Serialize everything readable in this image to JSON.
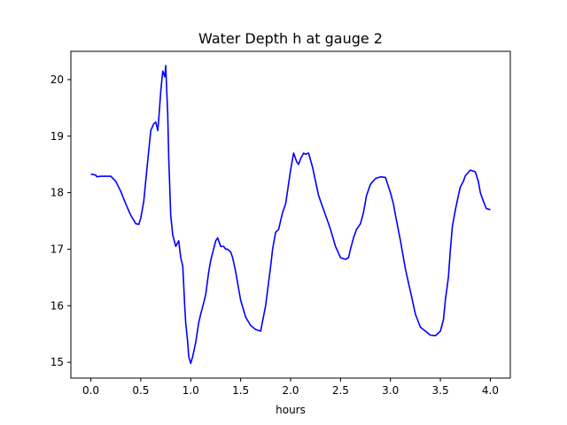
{
  "chart_data": {
    "type": "line",
    "title": "Water Depth h at gauge 2",
    "xlabel": "hours",
    "ylabel": "",
    "xlim": [
      -0.2,
      4.2
    ],
    "ylim": [
      14.72,
      20.5
    ],
    "grid": false,
    "xticks": [
      0.0,
      0.5,
      1.0,
      1.5,
      2.0,
      2.5,
      3.0,
      3.5,
      4.0
    ],
    "xtick_labels": [
      "0.0",
      "0.5",
      "1.0",
      "1.5",
      "2.0",
      "2.5",
      "3.0",
      "3.5",
      "4.0"
    ],
    "yticks": [
      15,
      16,
      17,
      18,
      19,
      20
    ],
    "ytick_labels": [
      "15",
      "16",
      "17",
      "18",
      "19",
      "20"
    ],
    "series": [
      {
        "color": "#0000ff",
        "x": [
          0.0,
          0.05,
          0.06,
          0.1,
          0.15,
          0.2,
          0.25,
          0.3,
          0.35,
          0.4,
          0.45,
          0.48,
          0.5,
          0.53,
          0.56,
          0.6,
          0.63,
          0.65,
          0.67,
          0.68,
          0.7,
          0.72,
          0.74,
          0.75,
          0.76,
          0.77,
          0.78,
          0.8,
          0.82,
          0.85,
          0.88,
          0.9,
          0.92,
          0.94,
          0.95,
          0.97,
          0.98,
          1.0,
          1.02,
          1.05,
          1.08,
          1.1,
          1.13,
          1.15,
          1.18,
          1.2,
          1.25,
          1.27,
          1.3,
          1.33,
          1.35,
          1.37,
          1.4,
          1.42,
          1.45,
          1.5,
          1.55,
          1.6,
          1.65,
          1.7,
          1.75,
          1.8,
          1.82,
          1.85,
          1.88,
          1.9,
          1.92,
          1.95,
          2.0,
          2.03,
          2.06,
          2.08,
          2.1,
          2.13,
          2.15,
          2.18,
          2.22,
          2.25,
          2.28,
          2.32,
          2.35,
          2.4,
          2.45,
          2.5,
          2.55,
          2.58,
          2.6,
          2.63,
          2.66,
          2.7,
          2.73,
          2.76,
          2.8,
          2.85,
          2.9,
          2.95,
          3.0,
          3.03,
          3.05,
          3.1,
          3.15,
          3.2,
          3.25,
          3.3,
          3.35,
          3.4,
          3.45,
          3.5,
          3.53,
          3.55,
          3.58,
          3.6,
          3.62,
          3.65,
          3.68,
          3.7,
          3.73,
          3.75,
          3.8,
          3.85,
          3.88,
          3.9,
          3.93,
          3.96,
          4.0
        ],
        "y": [
          18.33,
          18.31,
          18.28,
          18.29,
          18.29,
          18.29,
          18.2,
          18.02,
          17.8,
          17.6,
          17.45,
          17.44,
          17.55,
          17.85,
          18.4,
          19.1,
          19.22,
          19.25,
          19.1,
          19.3,
          19.8,
          20.15,
          20.05,
          20.25,
          19.8,
          19.4,
          18.6,
          17.6,
          17.25,
          17.05,
          17.15,
          16.85,
          16.7,
          16.0,
          15.7,
          15.35,
          15.1,
          14.98,
          15.1,
          15.35,
          15.7,
          15.85,
          16.05,
          16.2,
          16.6,
          16.8,
          17.15,
          17.2,
          17.05,
          17.05,
          17.0,
          17.0,
          16.95,
          16.85,
          16.6,
          16.1,
          15.8,
          15.65,
          15.58,
          15.55,
          16.0,
          16.7,
          17.0,
          17.3,
          17.35,
          17.5,
          17.65,
          17.8,
          18.4,
          18.7,
          18.55,
          18.5,
          18.6,
          18.7,
          18.68,
          18.7,
          18.45,
          18.2,
          17.95,
          17.75,
          17.6,
          17.35,
          17.05,
          16.85,
          16.82,
          16.85,
          17.0,
          17.2,
          17.35,
          17.45,
          17.65,
          17.95,
          18.15,
          18.25,
          18.28,
          18.27,
          18.0,
          17.8,
          17.6,
          17.15,
          16.65,
          16.25,
          15.85,
          15.62,
          15.55,
          15.48,
          15.47,
          15.55,
          15.75,
          16.1,
          16.5,
          17.0,
          17.4,
          17.7,
          17.95,
          18.1,
          18.2,
          18.3,
          18.4,
          18.37,
          18.2,
          18.0,
          17.85,
          17.72,
          17.7
        ]
      }
    ]
  }
}
